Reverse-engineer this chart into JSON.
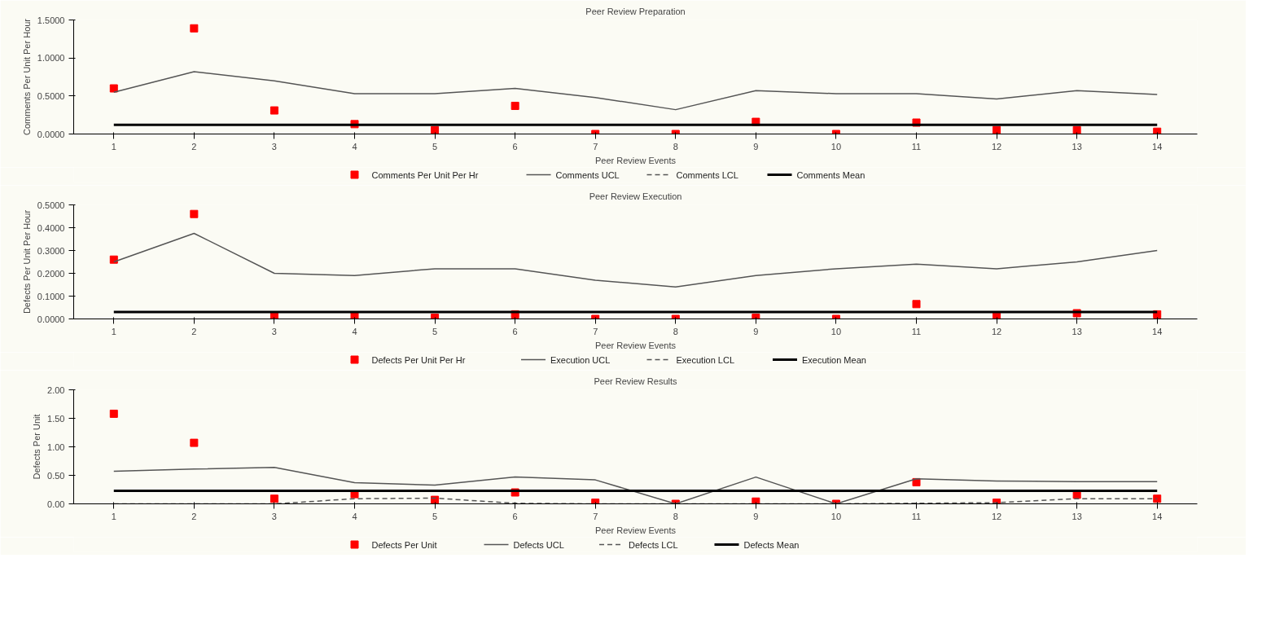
{
  "chart_data": [
    {
      "type": "scatter",
      "title": "Peer Review Preparation",
      "xlabel": "Peer Review Events",
      "ylabel": "Comments Per Unit Per Hour",
      "categories": [
        "1",
        "2",
        "3",
        "4",
        "5",
        "6",
        "7",
        "8",
        "9",
        "10",
        "11",
        "12",
        "13",
        "14"
      ],
      "ylim": [
        0,
        1.5
      ],
      "yticks": [
        {
          "value": 0,
          "label": "0.0000"
        },
        {
          "value": 0.5,
          "label": "0.5000"
        },
        {
          "value": 1,
          "label": "1.0000"
        },
        {
          "value": 1.5,
          "label": "1.5000"
        }
      ],
      "grid": false,
      "legend": "bottom",
      "series": [
        {
          "name": "Comments Per Unit Per Hr",
          "type": "scatter",
          "marker": "square",
          "color": "#ff0000",
          "values": [
            0.6,
            1.39,
            0.31,
            0.13,
            0.05,
            0.37,
            0.0,
            0.0,
            0.16,
            0.0,
            0.15,
            0.05,
            0.05,
            0.03
          ]
        },
        {
          "name": "Comments UCL",
          "type": "line",
          "line_style": "solid",
          "color": "#555555",
          "values": [
            0.55,
            0.82,
            0.7,
            0.53,
            0.53,
            0.6,
            0.48,
            0.32,
            0.57,
            0.53,
            0.53,
            0.46,
            0.57,
            0.52
          ]
        },
        {
          "name": "Comments LCL",
          "type": "line",
          "line_style": "dashed",
          "color": "#555555",
          "values": [
            null,
            null,
            null,
            null,
            null,
            null,
            null,
            null,
            null,
            null,
            null,
            null,
            null,
            null
          ]
        },
        {
          "name": "Comments Mean",
          "type": "line",
          "line_style": "solid",
          "color": "#000000",
          "values": [
            0.12,
            0.12,
            0.12,
            0.12,
            0.12,
            0.12,
            0.12,
            0.12,
            0.12,
            0.12,
            0.12,
            0.12,
            0.12,
            0.12
          ]
        }
      ]
    },
    {
      "type": "scatter",
      "title": "Peer Review Execution",
      "xlabel": "Peer Review Events",
      "ylabel": "Defects Per Unit Per Hour",
      "categories": [
        "1",
        "2",
        "3",
        "4",
        "5",
        "6",
        "7",
        "8",
        "9",
        "10",
        "11",
        "12",
        "13",
        "14"
      ],
      "ylim": [
        0,
        0.5
      ],
      "yticks": [
        {
          "value": 0,
          "label": "0.0000"
        },
        {
          "value": 0.1,
          "label": "0.1000"
        },
        {
          "value": 0.2,
          "label": "0.2000"
        },
        {
          "value": 0.3,
          "label": "0.3000"
        },
        {
          "value": 0.4,
          "label": "0.4000"
        },
        {
          "value": 0.5,
          "label": "0.5000"
        }
      ],
      "grid": false,
      "legend": "bottom",
      "series": [
        {
          "name": "Defects Per Unit Per Hr",
          "type": "scatter",
          "marker": "square",
          "color": "#ff0000",
          "values": [
            0.26,
            0.46,
            0.01,
            0.015,
            0.005,
            0.02,
            0.0,
            0.0,
            0.005,
            0.0,
            0.065,
            0.01,
            0.025,
            0.02
          ]
        },
        {
          "name": "Execution UCL",
          "type": "line",
          "line_style": "solid",
          "color": "#555555",
          "values": [
            0.25,
            0.375,
            0.2,
            0.19,
            0.22,
            0.22,
            0.17,
            0.14,
            0.19,
            0.22,
            0.24,
            0.22,
            0.25,
            0.3
          ]
        },
        {
          "name": "Execution LCL",
          "type": "line",
          "line_style": "dashed",
          "color": "#555555",
          "values": [
            null,
            null,
            null,
            null,
            null,
            null,
            null,
            null,
            null,
            null,
            null,
            null,
            null,
            null
          ]
        },
        {
          "name": "Execution Mean",
          "type": "line",
          "line_style": "solid",
          "color": "#000000",
          "values": [
            0.03,
            0.03,
            0.03,
            0.03,
            0.03,
            0.03,
            0.03,
            0.03,
            0.03,
            0.03,
            0.03,
            0.03,
            0.03,
            0.03
          ]
        }
      ]
    },
    {
      "type": "scatter",
      "title": "Peer Review Results",
      "xlabel": "Peer Review Events",
      "ylabel": "Defects Per Unit",
      "categories": [
        "1",
        "2",
        "3",
        "4",
        "5",
        "6",
        "7",
        "8",
        "9",
        "10",
        "11",
        "12",
        "13",
        "14"
      ],
      "ylim": [
        0,
        2
      ],
      "yticks": [
        {
          "value": 0,
          "label": "0.00"
        },
        {
          "value": 0.5,
          "label": "0.50"
        },
        {
          "value": 1,
          "label": "1.00"
        },
        {
          "value": 1.5,
          "label": "1.50"
        },
        {
          "value": 2,
          "label": "2.00"
        }
      ],
      "grid": false,
      "legend": "bottom",
      "series": [
        {
          "name": "Defects Per Unit",
          "type": "scatter",
          "marker": "square",
          "color": "#ff0000",
          "values": [
            1.58,
            1.07,
            0.09,
            0.17,
            0.07,
            0.2,
            0.02,
            0.0,
            0.04,
            0.0,
            0.38,
            0.02,
            0.16,
            0.09
          ]
        },
        {
          "name": "Defects UCL",
          "type": "line",
          "line_style": "solid",
          "color": "#555555",
          "values": [
            0.57,
            0.61,
            0.64,
            0.37,
            0.33,
            0.47,
            0.42,
            0.0,
            0.47,
            0.0,
            0.44,
            0.4,
            0.39,
            0.39
          ]
        },
        {
          "name": "Defects LCL",
          "type": "line",
          "line_style": "dashed",
          "color": "#555555",
          "values": [
            0,
            0,
            0,
            0.09,
            0.1,
            0.01,
            0,
            0,
            0,
            0,
            0.01,
            0.02,
            0.09,
            0.09
          ]
        },
        {
          "name": "Defects Mean",
          "type": "line",
          "line_style": "solid",
          "color": "#000000",
          "values": [
            0.23,
            0.23,
            0.23,
            0.23,
            0.23,
            0.23,
            0.23,
            0.23,
            0.23,
            0.23,
            0.23,
            0.23,
            0.23,
            0.23
          ]
        }
      ]
    }
  ]
}
